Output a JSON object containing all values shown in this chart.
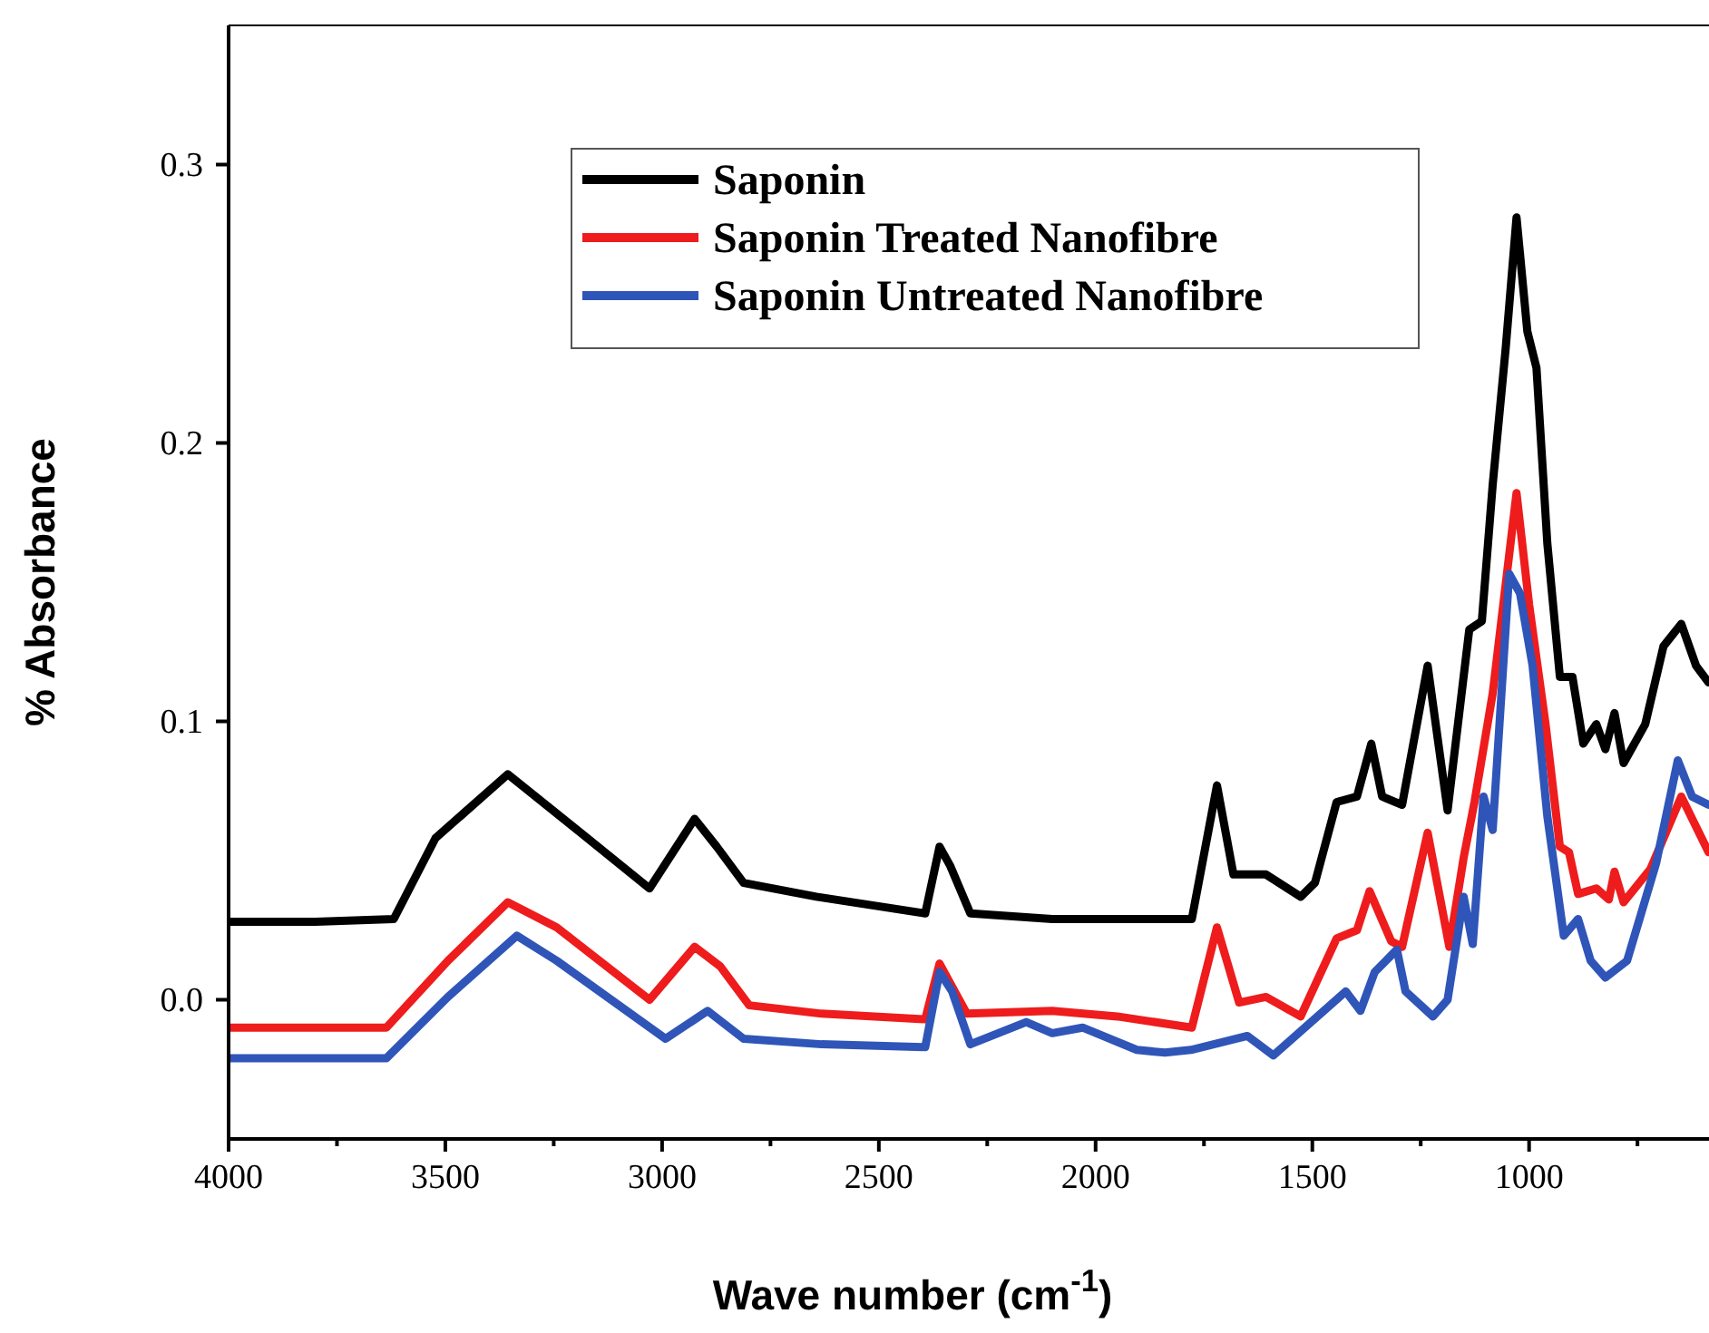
{
  "chart_data": {
    "type": "line",
    "xlabel": "Wave number (cm$^{-1}$)",
    "ylabel": "% Absorbance",
    "xlim": [
      4000,
      585
    ],
    "xticks": [
      4000,
      {
        "value": 3750,
        "label": null
      },
      3500,
      {
        "value": 3250,
        "label": null
      },
      3000,
      {
        "value": 2750,
        "label": null
      },
      2500,
      {
        "value": 2250,
        "label": null
      },
      2000,
      {
        "value": 1750,
        "label": null
      },
      1500,
      {
        "value": 1250,
        "label": null
      },
      1000,
      {
        "value": 750,
        "label": null
      }
    ],
    "ylim": [
      -0.05,
      0.35
    ],
    "yticks": [
      {
        "value": 0,
        "label": "0.0"
      },
      0.1,
      0.2,
      0.3
    ],
    "grid": false,
    "legend": "top left",
    "marker": "none",
    "line_style": "solid",
    "series": [
      {
        "name": "Saponin",
        "color": "#000000",
        "x": [
          4000,
          3800,
          3619,
          3523,
          3356,
          3188,
          3029,
          2925,
          2874,
          2812,
          2644,
          2393,
          2360,
          2335,
          2289,
          2100,
          1900,
          1778,
          1720,
          1682,
          1607,
          1527,
          1494,
          1444,
          1397,
          1364,
          1339,
          1293,
          1234,
          1188,
          1138,
          1109,
          1084,
          1054,
          1029,
          1004,
          983,
          958,
          929,
          900,
          875,
          845,
          824,
          803,
          782,
          732,
          690,
          649,
          615,
          586
        ],
        "values": [
          0.028,
          0.028,
          0.029,
          0.058,
          0.081,
          0.06,
          0.04,
          0.065,
          0.055,
          0.042,
          0.037,
          0.031,
          0.055,
          0.048,
          0.031,
          0.029,
          0.029,
          0.029,
          0.077,
          0.045,
          0.045,
          0.037,
          0.042,
          0.071,
          0.073,
          0.092,
          0.073,
          0.07,
          0.12,
          0.068,
          0.133,
          0.136,
          0.185,
          0.234,
          0.281,
          0.24,
          0.227,
          0.164,
          0.116,
          0.116,
          0.092,
          0.099,
          0.09,
          0.103,
          0.085,
          0.099,
          0.127,
          0.135,
          0.12,
          0.114
        ]
      },
      {
        "name": "Saponin Treated Nanofibre",
        "color": "#ee1c1c",
        "x": [
          4000,
          3800,
          3636,
          3494,
          3356,
          3243,
          3029,
          2925,
          2866,
          2799,
          2632,
          2393,
          2360,
          2297,
          2100,
          1950,
          1778,
          1720,
          1669,
          1607,
          1527,
          1444,
          1397,
          1368,
          1318,
          1293,
          1234,
          1184,
          1151,
          1126,
          1084,
          1029,
          1000,
          962,
          929,
          908,
          887,
          845,
          816,
          803,
          782,
          720,
          649,
          586
        ],
        "values": [
          -0.01,
          -0.01,
          -0.01,
          0.014,
          0.035,
          0.026,
          0.0,
          0.019,
          0.012,
          -0.002,
          -0.005,
          -0.007,
          0.013,
          -0.005,
          -0.004,
          -0.006,
          -0.01,
          0.026,
          -0.001,
          0.001,
          -0.006,
          0.022,
          0.025,
          0.039,
          0.021,
          0.019,
          0.06,
          0.019,
          0.051,
          0.071,
          0.11,
          0.182,
          0.142,
          0.099,
          0.055,
          0.053,
          0.038,
          0.04,
          0.036,
          0.046,
          0.035,
          0.047,
          0.073,
          0.053
        ]
      },
      {
        "name": "Saponin Untreated Nanofibre",
        "color": "#2f55b8",
        "x": [
          4000,
          3800,
          3636,
          3494,
          3335,
          3243,
          2992,
          2895,
          2812,
          2632,
          2393,
          2360,
          2331,
          2289,
          2160,
          2100,
          2030,
          1905,
          1840,
          1780,
          1650,
          1590,
          1423,
          1389,
          1356,
          1305,
          1285,
          1222,
          1188,
          1151,
          1130,
          1105,
          1084,
          1046,
          1021,
          992,
          958,
          920,
          887,
          858,
          824,
          774,
          707,
          657,
          624,
          586
        ],
        "values": [
          -0.021,
          -0.021,
          -0.021,
          0.001,
          0.023,
          0.014,
          -0.014,
          -0.004,
          -0.014,
          -0.016,
          -0.017,
          0.01,
          0.003,
          -0.016,
          -0.008,
          -0.012,
          -0.01,
          -0.018,
          -0.019,
          -0.018,
          -0.013,
          -0.02,
          0.003,
          -0.004,
          0.01,
          0.018,
          0.003,
          -0.006,
          0.0,
          0.037,
          0.02,
          0.073,
          0.061,
          0.153,
          0.146,
          0.12,
          0.066,
          0.023,
          0.029,
          0.014,
          0.008,
          0.014,
          0.049,
          0.086,
          0.073,
          0.07
        ]
      }
    ]
  }
}
